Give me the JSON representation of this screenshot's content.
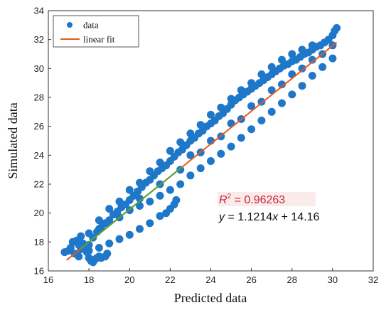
{
  "chart_data": {
    "type": "scatter",
    "title": "",
    "xlabel": "Predicted data",
    "ylabel": "Simulated data",
    "xlim": [
      16,
      32
    ],
    "ylim": [
      16,
      34
    ],
    "xticks": [
      "16",
      "18",
      "20",
      "22",
      "24",
      "26",
      "28",
      "30",
      "32"
    ],
    "yticks": [
      "16",
      "18",
      "20",
      "22",
      "24",
      "26",
      "28",
      "30",
      "32",
      "34"
    ],
    "grid": false,
    "legend_position": "top-left",
    "legend": [
      {
        "name": "data",
        "type": "marker",
        "color": "#1f77c9"
      },
      {
        "name": "linear fit",
        "type": "line",
        "color": "#e8571e"
      }
    ],
    "series": [
      {
        "name": "data",
        "color": "#1f77c9",
        "points": [
          [
            16.8,
            17.3
          ],
          [
            17.0,
            17.4
          ],
          [
            17.1,
            17.6
          ],
          [
            17.2,
            18.0
          ],
          [
            17.3,
            17.2
          ],
          [
            17.4,
            18.1
          ],
          [
            17.5,
            17.8
          ],
          [
            17.6,
            18.4
          ],
          [
            17.7,
            17.9
          ],
          [
            17.8,
            17.6
          ],
          [
            17.9,
            17.3
          ],
          [
            18.0,
            16.9
          ],
          [
            18.1,
            16.7
          ],
          [
            18.2,
            16.6
          ],
          [
            18.3,
            16.8
          ],
          [
            18.4,
            16.9
          ],
          [
            18.5,
            17.0
          ],
          [
            18.6,
            16.9
          ],
          [
            18.8,
            17.0
          ],
          [
            18.9,
            17.2
          ],
          [
            17.6,
            17.5
          ],
          [
            17.8,
            17.5
          ],
          [
            18.0,
            17.8
          ],
          [
            18.2,
            18.3
          ],
          [
            18.4,
            18.7
          ],
          [
            18.6,
            19.0
          ],
          [
            18.8,
            19.3
          ],
          [
            19.0,
            19.5
          ],
          [
            19.2,
            19.9
          ],
          [
            19.4,
            20.1
          ],
          [
            19.6,
            20.4
          ],
          [
            19.8,
            20.6
          ],
          [
            20.0,
            20.9
          ],
          [
            20.2,
            21.2
          ],
          [
            20.4,
            21.5
          ],
          [
            20.6,
            21.8
          ],
          [
            20.8,
            22.1
          ],
          [
            21.0,
            22.3
          ],
          [
            21.2,
            22.6
          ],
          [
            21.4,
            22.9
          ],
          [
            21.6,
            23.1
          ],
          [
            21.8,
            23.3
          ],
          [
            22.0,
            23.6
          ],
          [
            22.2,
            23.9
          ],
          [
            22.4,
            24.2
          ],
          [
            22.6,
            24.4
          ],
          [
            22.8,
            24.7
          ],
          [
            23.0,
            25.0
          ],
          [
            23.2,
            25.2
          ],
          [
            23.4,
            25.5
          ],
          [
            23.6,
            25.7
          ],
          [
            23.8,
            26.0
          ],
          [
            24.0,
            26.2
          ],
          [
            24.2,
            26.4
          ],
          [
            24.4,
            26.7
          ],
          [
            24.6,
            26.9
          ],
          [
            24.8,
            27.2
          ],
          [
            25.0,
            27.5
          ],
          [
            25.2,
            27.8
          ],
          [
            25.4,
            28.0
          ],
          [
            25.6,
            28.2
          ],
          [
            25.8,
            28.4
          ],
          [
            26.0,
            28.6
          ],
          [
            26.2,
            28.8
          ],
          [
            26.4,
            29.0
          ],
          [
            26.6,
            29.2
          ],
          [
            26.8,
            29.4
          ],
          [
            27.0,
            29.6
          ],
          [
            27.2,
            29.8
          ],
          [
            27.4,
            30.0
          ],
          [
            27.6,
            30.2
          ],
          [
            27.8,
            30.3
          ],
          [
            28.0,
            30.5
          ],
          [
            28.2,
            30.6
          ],
          [
            28.4,
            30.8
          ],
          [
            28.6,
            31.0
          ],
          [
            28.8,
            31.1
          ],
          [
            29.0,
            31.3
          ],
          [
            29.2,
            31.5
          ],
          [
            29.4,
            31.6
          ],
          [
            29.6,
            31.8
          ],
          [
            29.8,
            32.0
          ],
          [
            30.0,
            32.3
          ],
          [
            30.1,
            32.6
          ],
          [
            30.2,
            32.8
          ],
          [
            17.5,
            17.0
          ],
          [
            18.0,
            17.4
          ],
          [
            18.5,
            17.6
          ],
          [
            19.0,
            17.9
          ],
          [
            19.5,
            18.2
          ],
          [
            20.0,
            18.5
          ],
          [
            20.5,
            18.9
          ],
          [
            21.0,
            19.3
          ],
          [
            21.5,
            19.8
          ],
          [
            21.8,
            20.0
          ],
          [
            22.0,
            20.3
          ],
          [
            22.2,
            20.6
          ],
          [
            22.3,
            20.9
          ],
          [
            18.0,
            18.6
          ],
          [
            18.5,
            18.9
          ],
          [
            19.0,
            19.4
          ],
          [
            19.5,
            19.7
          ],
          [
            20.0,
            20.2
          ],
          [
            20.5,
            20.5
          ],
          [
            21.0,
            20.8
          ],
          [
            21.5,
            21.2
          ],
          [
            22.0,
            21.6
          ],
          [
            22.5,
            22.0
          ],
          [
            23.0,
            22.6
          ],
          [
            23.5,
            23.1
          ],
          [
            24.0,
            23.6
          ],
          [
            24.5,
            24.1
          ],
          [
            25.0,
            24.6
          ],
          [
            25.5,
            25.2
          ],
          [
            26.0,
            25.8
          ],
          [
            26.5,
            26.4
          ],
          [
            27.0,
            27.0
          ],
          [
            27.5,
            27.6
          ],
          [
            28.0,
            28.2
          ],
          [
            28.5,
            28.8
          ],
          [
            29.0,
            29.5
          ],
          [
            29.5,
            30.1
          ],
          [
            30.0,
            30.7
          ],
          [
            18.5,
            19.5
          ],
          [
            19.0,
            20.3
          ],
          [
            19.5,
            20.8
          ],
          [
            20.0,
            21.6
          ],
          [
            20.5,
            22.1
          ],
          [
            21.0,
            22.9
          ],
          [
            21.5,
            23.5
          ],
          [
            22.0,
            24.3
          ],
          [
            22.5,
            24.9
          ],
          [
            23.0,
            25.5
          ],
          [
            23.5,
            26.1
          ],
          [
            24.0,
            26.8
          ],
          [
            24.5,
            27.3
          ],
          [
            25.0,
            27.9
          ],
          [
            25.5,
            28.5
          ],
          [
            26.0,
            29.0
          ],
          [
            26.5,
            29.6
          ],
          [
            27.0,
            30.1
          ],
          [
            27.5,
            30.6
          ],
          [
            28.0,
            31.0
          ],
          [
            28.5,
            31.3
          ],
          [
            29.0,
            31.6
          ],
          [
            23.0,
            24.0
          ],
          [
            24.0,
            25.0
          ],
          [
            25.0,
            26.2
          ],
          [
            26.0,
            27.4
          ],
          [
            27.0,
            28.5
          ],
          [
            28.0,
            29.6
          ],
          [
            29.0,
            30.6
          ],
          [
            30.0,
            31.6
          ],
          [
            20.5,
            21.0
          ],
          [
            21.5,
            22.0
          ],
          [
            22.5,
            23.0
          ],
          [
            23.5,
            24.2
          ],
          [
            24.5,
            25.3
          ],
          [
            25.5,
            26.5
          ],
          [
            26.5,
            27.7
          ],
          [
            27.5,
            28.9
          ],
          [
            28.5,
            30.0
          ],
          [
            29.5,
            31.0
          ]
        ]
      },
      {
        "name": "linear fit",
        "color": "#e8571e",
        "slope": 1.1214,
        "intercept": 14.16,
        "x_range": [
          16.9,
          30.2
        ]
      }
    ],
    "annotations": {
      "r2_prefix": "R",
      "r2_sup": "2",
      "r2_value": " = 0.96263",
      "r2_color": "#c8283a",
      "equation_prefix": "y",
      "equation_middle": " = 1.1214",
      "equation_x": "x",
      "equation_suffix": " + 14.16"
    }
  }
}
